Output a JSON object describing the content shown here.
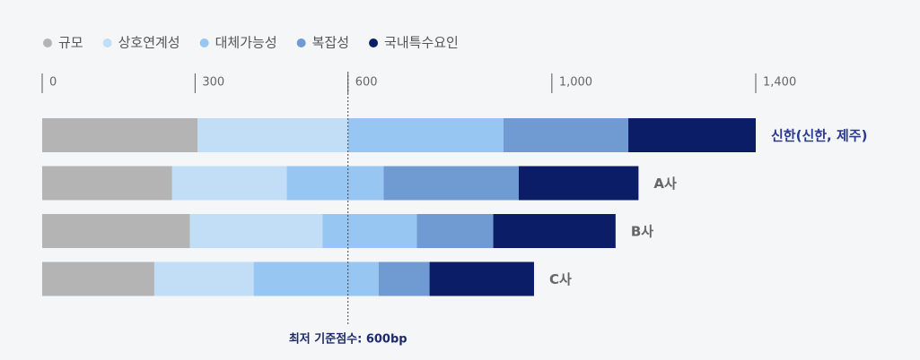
{
  "chart_data": {
    "type": "stacked_barh",
    "categories": [
      "신한(신한, 제주)",
      "A사",
      "B사",
      "C사"
    ],
    "series": [
      {
        "name": "규모",
        "color": "#b4b4b4",
        "values": [
          305,
          255,
          290,
          220
        ]
      },
      {
        "name": "상호연계성",
        "color": "#c2ddf6",
        "values": [
          295,
          225,
          260,
          195
        ]
      },
      {
        "name": "대체가능성",
        "color": "#96c6f1",
        "values": [
          305,
          190,
          185,
          245
        ]
      },
      {
        "name": "복잡성",
        "color": "#6f9bd2",
        "values": [
          245,
          265,
          150,
          100
        ]
      },
      {
        "name": "국내특수요인",
        "color": "#0c1d68",
        "values": [
          250,
          235,
          240,
          205
        ]
      }
    ],
    "xlim": [
      0,
      1400
    ],
    "xticks": [
      0,
      300,
      600,
      {
        "value": 1000,
        "label": "1,000"
      },
      {
        "value": 1400,
        "label": "1,400"
      }
    ],
    "reference_line": {
      "value": 600,
      "label": "최저 기준점수: 600bp"
    },
    "legend": "top-left"
  }
}
